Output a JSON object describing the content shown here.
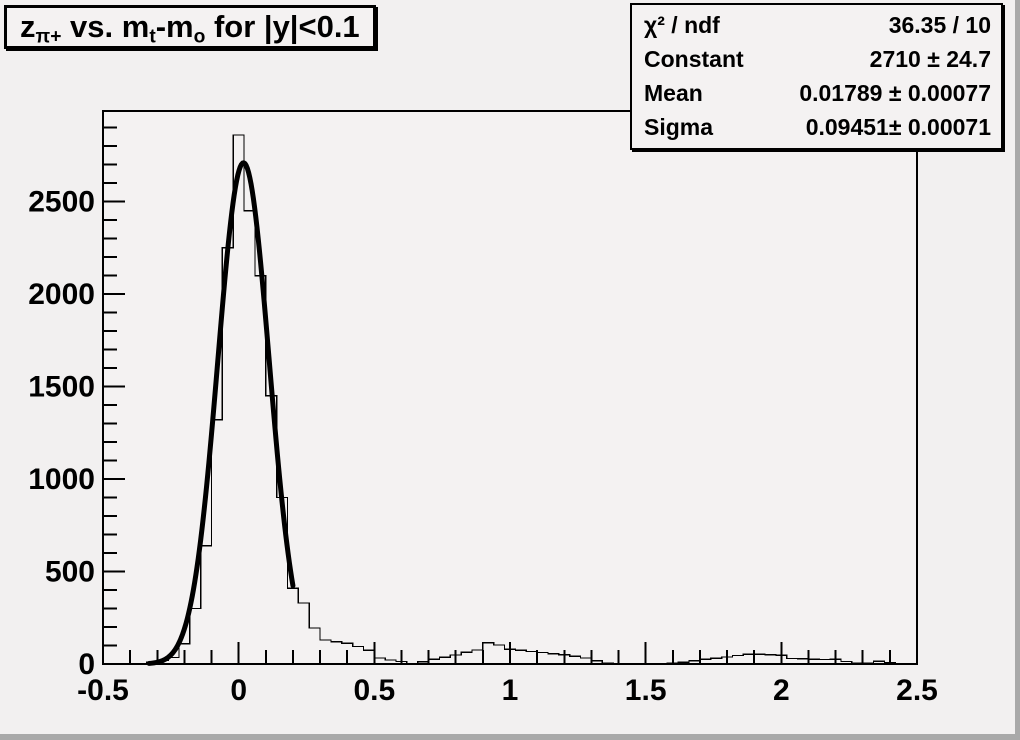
{
  "canvas": {
    "background_color": "#f2f0f0",
    "bevel_color": "#a9a9a9",
    "frame_fill_color": "#f4f2f2",
    "line_color": "#000000"
  },
  "title_box": {
    "segments": [
      "z",
      "π+",
      " vs. m",
      "t",
      "-m",
      "o",
      " for |y|<0.1"
    ]
  },
  "stats_box": {
    "rows": [
      {
        "label": "χ² / ndf",
        "value": "36.35 / 10"
      },
      {
        "label": "Constant",
        "value": "2710 ± 24.7"
      },
      {
        "label": "Mean",
        "value": "0.01789 ± 0.00077"
      },
      {
        "label": "Sigma",
        "value": "0.09451± 0.00071"
      }
    ]
  },
  "chart_data": {
    "type": "bar",
    "subtype": "step-histogram",
    "title": "z_{π+} vs. m_t-m_o for |y|<0.1",
    "xlabel": "",
    "ylabel": "",
    "xlim": [
      -0.5,
      2.5
    ],
    "ylim": [
      0,
      2990
    ],
    "grid": false,
    "legend_position": "stats-box top-right",
    "x_major_ticks": [
      -0.5,
      0,
      0.5,
      1,
      1.5,
      2,
      2.5
    ],
    "x_tick_labels": [
      "-0.5",
      "0",
      "0.5",
      "1",
      "1.5",
      "2",
      "2.5"
    ],
    "x_minor_step": 0.1,
    "y_major_ticks": [
      0,
      500,
      1000,
      1500,
      2000,
      2500
    ],
    "y_tick_labels": [
      "0",
      "500",
      "1000",
      "1500",
      "2000",
      "2500"
    ],
    "y_minor_step": 100,
    "bins": {
      "start": -0.5,
      "width": 0.04,
      "counts": [
        0,
        0,
        0,
        2,
        9,
        19,
        35,
        110,
        300,
        640,
        1320,
        2250,
        2860,
        2450,
        2100,
        1450,
        900,
        410,
        330,
        195,
        130,
        120,
        112,
        95,
        75,
        33,
        22,
        14,
        3,
        12,
        25,
        36,
        49,
        63,
        76,
        115,
        103,
        80,
        74,
        68,
        62,
        56,
        50,
        42,
        32,
        18,
        4,
        2,
        1,
        1,
        2,
        3,
        5,
        10,
        18,
        26,
        31,
        38,
        46,
        52,
        53,
        50,
        47,
        30,
        28,
        26,
        24,
        25,
        14,
        5,
        4,
        15,
        8,
        3,
        2
      ]
    },
    "fit": {
      "shape": "gaussian",
      "constant": 2710,
      "constant_err": 24.7,
      "mean": 0.01789,
      "mean_err": 0.00077,
      "sigma": 0.09451,
      "sigma_err": 0.00071,
      "chi2": 36.35,
      "ndf": 10,
      "draw_range": [
        -0.33,
        0.2
      ]
    }
  }
}
